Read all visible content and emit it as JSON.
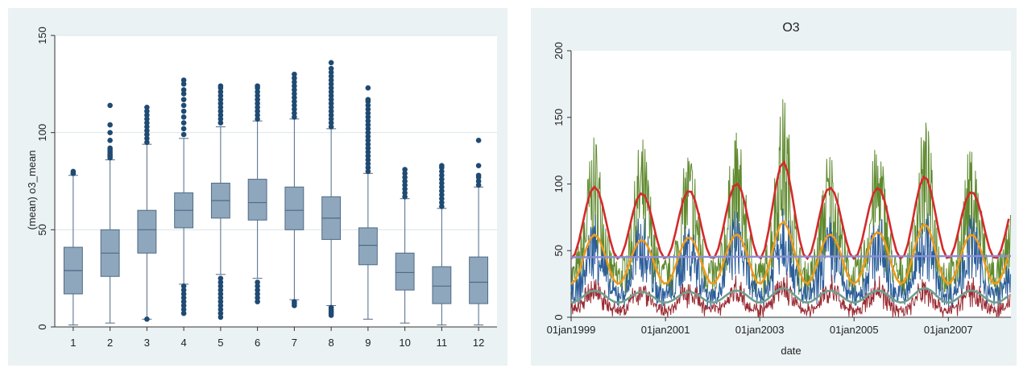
{
  "colors": {
    "panel_bg": "#eaf2f3",
    "box_fill": "#8fa7bd",
    "box_stroke": "#4e6a86",
    "outlier": "#1f4a73",
    "grid": "#dbe6e8"
  },
  "chart_data": [
    {
      "type": "box",
      "title": "",
      "xlabel": "",
      "ylabel": "(mean) o3_mean",
      "ylim": [
        0,
        150
      ],
      "yticks": [
        "0",
        "50",
        "100",
        "150"
      ],
      "categories": [
        "1",
        "2",
        "3",
        "4",
        "5",
        "6",
        "7",
        "8",
        "9",
        "10",
        "11",
        "12"
      ],
      "boxes": [
        {
          "low": 1,
          "q1": 17,
          "median": 29,
          "q3": 41,
          "high": 78,
          "outliers": [
            79,
            79,
            80
          ]
        },
        {
          "low": 2,
          "q1": 26,
          "median": 38,
          "q3": 50,
          "high": 86,
          "outliers": [
            87,
            88,
            89,
            90,
            91,
            92,
            96,
            100,
            104,
            114
          ]
        },
        {
          "low": 4,
          "q1": 38,
          "median": 50,
          "q3": 60,
          "high": 94,
          "outliers": [
            4,
            95,
            97,
            99,
            101,
            103,
            105,
            107,
            109,
            111,
            113
          ]
        },
        {
          "low": 22,
          "q1": 51,
          "median": 60,
          "q3": 69,
          "high": 97,
          "outliers": [
            7,
            9,
            11,
            13,
            15,
            17,
            19,
            21,
            99,
            102,
            105,
            108,
            111,
            114,
            117,
            120,
            122,
            125,
            127
          ]
        },
        {
          "low": 27,
          "q1": 56,
          "median": 65,
          "q3": 74,
          "high": 103,
          "outliers": [
            5,
            7,
            9,
            11,
            13,
            15,
            17,
            19,
            21,
            23,
            25,
            105,
            107,
            109,
            111,
            113,
            115,
            117,
            119,
            121,
            123,
            124
          ]
        },
        {
          "low": 25,
          "q1": 55,
          "median": 64,
          "q3": 76,
          "high": 106,
          "outliers": [
            13,
            15,
            17,
            19,
            21,
            23,
            107,
            109,
            111,
            113,
            115,
            117,
            119,
            121,
            123,
            124
          ]
        },
        {
          "low": 14,
          "q1": 50,
          "median": 60,
          "q3": 72,
          "high": 107,
          "outliers": [
            11,
            12,
            13,
            108,
            110,
            112,
            114,
            116,
            118,
            120,
            122,
            124,
            126,
            128,
            130
          ]
        },
        {
          "low": 11,
          "q1": 45,
          "median": 56,
          "q3": 67,
          "high": 102,
          "outliers": [
            6,
            7,
            8,
            9,
            10,
            103,
            105,
            107,
            109,
            111,
            113,
            115,
            117,
            119,
            121,
            123,
            125,
            127,
            129,
            131,
            133,
            136
          ]
        },
        {
          "low": 4,
          "q1": 32,
          "median": 42,
          "q3": 51,
          "high": 79,
          "outliers": [
            80,
            82,
            84,
            86,
            88,
            90,
            92,
            94,
            96,
            98,
            100,
            102,
            104,
            106,
            108,
            110,
            112,
            114,
            116,
            117,
            123
          ]
        },
        {
          "low": 2,
          "q1": 19,
          "median": 28,
          "q3": 38,
          "high": 66,
          "outliers": [
            67,
            69,
            71,
            73,
            75,
            77,
            79,
            81
          ]
        },
        {
          "low": 1,
          "q1": 12,
          "median": 21,
          "q3": 31,
          "high": 61,
          "outliers": [
            62,
            64,
            66,
            68,
            70,
            72,
            74,
            76,
            78,
            80,
            82,
            83
          ]
        },
        {
          "low": 1,
          "q1": 12,
          "median": 23,
          "q3": 36,
          "high": 72,
          "outliers": [
            73,
            75,
            77,
            78,
            83,
            96
          ]
        }
      ]
    },
    {
      "type": "line",
      "title": "O3",
      "xlabel": "date",
      "ylabel": "",
      "ylim": [
        0,
        200
      ],
      "yticks": [
        "0",
        "50",
        "100",
        "150",
        "200"
      ],
      "xlim": [
        "1999-01-01",
        "2008-04-30"
      ],
      "xticks": [
        {
          "date": "1999-01-01",
          "label": "01jan1999"
        },
        {
          "date": "2001-01-01",
          "label": "01jan2001"
        },
        {
          "date": "2003-01-01",
          "label": "01jan2003"
        },
        {
          "date": "2005-01-01",
          "label": "01jan2005"
        },
        {
          "date": "2007-01-01",
          "label": "01jan2007"
        }
      ],
      "series": [
        {
          "color": "#5f8a2f",
          "kind": "noisy-seasonal",
          "seasonal_peaks": [
            {
              "date": "1999-07-01",
              "value": 138
            },
            {
              "date": "2000-07-01",
              "value": 134
            },
            {
              "date": "2001-07-01",
              "value": 130
            },
            {
              "date": "2002-07-01",
              "value": 140
            },
            {
              "date": "2003-07-01",
              "value": 170
            },
            {
              "date": "2004-07-01",
              "value": 128
            },
            {
              "date": "2005-07-01",
              "value": 135
            },
            {
              "date": "2006-07-01",
              "value": 150
            },
            {
              "date": "2007-07-01",
              "value": 130
            }
          ],
          "winter_level": 45
        },
        {
          "color": "#2b5d9a",
          "kind": "noisy-seasonal",
          "seasonal_peaks": [
            {
              "date": "1999-07-01",
              "value": 80
            },
            {
              "date": "2000-07-01",
              "value": 78
            },
            {
              "date": "2001-07-01",
              "value": 76
            },
            {
              "date": "2002-07-01",
              "value": 82
            },
            {
              "date": "2003-07-01",
              "value": 95
            },
            {
              "date": "2004-07-01",
              "value": 75
            },
            {
              "date": "2005-07-01",
              "value": 78
            },
            {
              "date": "2006-07-01",
              "value": 85
            },
            {
              "date": "2007-07-01",
              "value": 78
            }
          ],
          "winter_level": 25
        },
        {
          "color": "#9a2b33",
          "kind": "noisy-seasonal",
          "seasonal_peaks": [
            {
              "date": "1999-07-01",
              "value": 30
            },
            {
              "date": "2000-07-01",
              "value": 30
            },
            {
              "date": "2001-07-01",
              "value": 30
            },
            {
              "date": "2002-07-01",
              "value": 30
            },
            {
              "date": "2003-07-01",
              "value": 32
            },
            {
              "date": "2004-07-01",
              "value": 30
            },
            {
              "date": "2005-07-01",
              "value": 30
            },
            {
              "date": "2006-07-01",
              "value": 30
            },
            {
              "date": "2007-07-01",
              "value": 30
            }
          ],
          "winter_level": 8
        },
        {
          "color": "#d42a2a",
          "kind": "smooth-monthly",
          "peak": [
            {
              "date": "1999-07-01",
              "value": 98
            },
            {
              "date": "2000-07-01",
              "value": 93
            },
            {
              "date": "2001-07-01",
              "value": 95
            },
            {
              "date": "2002-07-01",
              "value": 100
            },
            {
              "date": "2003-07-01",
              "value": 117
            },
            {
              "date": "2004-07-01",
              "value": 97
            },
            {
              "date": "2005-07-01",
              "value": 97
            },
            {
              "date": "2006-07-01",
              "value": 106
            },
            {
              "date": "2007-07-01",
              "value": 94
            }
          ],
          "trough": 44
        },
        {
          "color": "#ef9a20",
          "kind": "smooth-monthly",
          "peak": [
            {
              "date": "1999-07-01",
              "value": 62
            },
            {
              "date": "2000-07-01",
              "value": 58
            },
            {
              "date": "2001-07-01",
              "value": 60
            },
            {
              "date": "2002-07-01",
              "value": 62
            },
            {
              "date": "2003-07-01",
              "value": 72
            },
            {
              "date": "2004-07-01",
              "value": 62
            },
            {
              "date": "2005-07-01",
              "value": 64
            },
            {
              "date": "2006-07-01",
              "value": 70
            },
            {
              "date": "2007-07-01",
              "value": 62
            }
          ],
          "trough": 25
        },
        {
          "color": "#6f9f8f",
          "kind": "smooth-monthly",
          "peak": [
            {
              "date": "1999-07-01",
              "value": 20
            },
            {
              "date": "2000-07-01",
              "value": 19
            },
            {
              "date": "2001-07-01",
              "value": 19
            },
            {
              "date": "2002-07-01",
              "value": 20
            },
            {
              "date": "2003-07-01",
              "value": 22
            },
            {
              "date": "2004-07-01",
              "value": 20
            },
            {
              "date": "2005-07-01",
              "value": 20
            },
            {
              "date": "2006-07-01",
              "value": 22
            },
            {
              "date": "2007-07-01",
              "value": 20
            }
          ],
          "trough": 11
        },
        {
          "color": "#8a8fd6",
          "kind": "flat",
          "values": [
            {
              "date": "1999-01-01",
              "value": 45
            },
            {
              "date": "2008-04-30",
              "value": 46
            }
          ]
        }
      ]
    }
  ]
}
